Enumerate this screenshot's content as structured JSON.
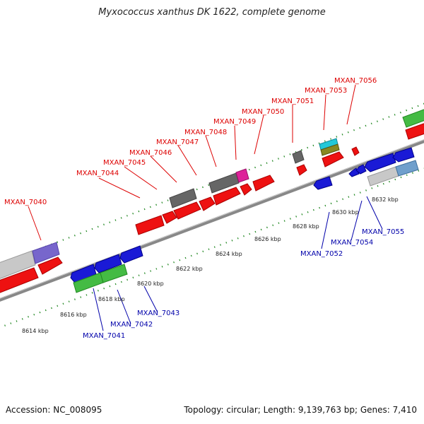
{
  "title": "Myxococcus xanthus DK 1622, complete genome",
  "footer": {
    "accession": "Accession: NC_008095",
    "summary": "Topology: circular; Length: 9,139,763 bp; Genes: 7,410"
  },
  "colors": {
    "forward_gene": "#ee1111",
    "reverse_gene": "#1a1ad6",
    "dark_gray_gene": "#666666",
    "light_gray_gene": "#c8c8c8",
    "green_gene": "#44bb44",
    "purple_gene": "#7766cc",
    "magenta_gene": "#dd2299",
    "cyan_gene": "#22c8d8",
    "olive_gene": "#888822",
    "steel_gene": "#6f9fcc",
    "backbone": "#888888",
    "ruler_dots": "#228822",
    "forward_label": "#dd0000",
    "reverse_label": "#0000aa"
  },
  "kbp_ticks": [
    "8614 kbp",
    "8616 kbp",
    "8618 kbp",
    "8620 kbp",
    "8622 kbp",
    "8624 kbp",
    "8626 kbp",
    "8628 kbp",
    "8630 kbp",
    "8632 kbp"
  ],
  "forward_labels": [
    "MXAN_7040",
    "MXAN_7044",
    "MXAN_7045",
    "MXAN_7046",
    "MXAN_7047",
    "MXAN_7048",
    "MXAN_7049",
    "MXAN_7050",
    "MXAN_7051",
    "MXAN_7053",
    "MXAN_7056"
  ],
  "reverse_labels": [
    "MXAN_7041",
    "MXAN_7042",
    "MXAN_7043",
    "MXAN_7052",
    "MXAN_7054",
    "MXAN_7055"
  ]
}
